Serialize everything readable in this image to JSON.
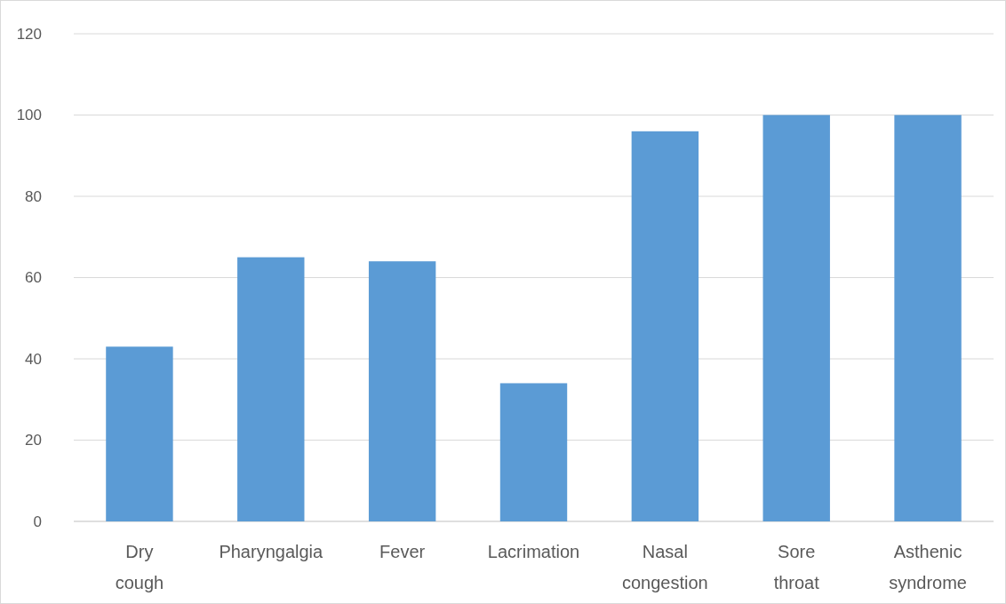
{
  "chart_data": {
    "type": "bar",
    "categories": [
      "Dry cough",
      "Pharyngalgia",
      "Fever",
      "Lacrimation",
      "Nasal congestion",
      "Sore throat",
      "Asthenic syndrome"
    ],
    "values": [
      43,
      65,
      64,
      34,
      96,
      100,
      100
    ],
    "color": "#5b9bd5",
    "ylim": [
      0,
      120
    ],
    "yticks": [
      0,
      20,
      40,
      60,
      80,
      100,
      120
    ],
    "grid": "y"
  }
}
